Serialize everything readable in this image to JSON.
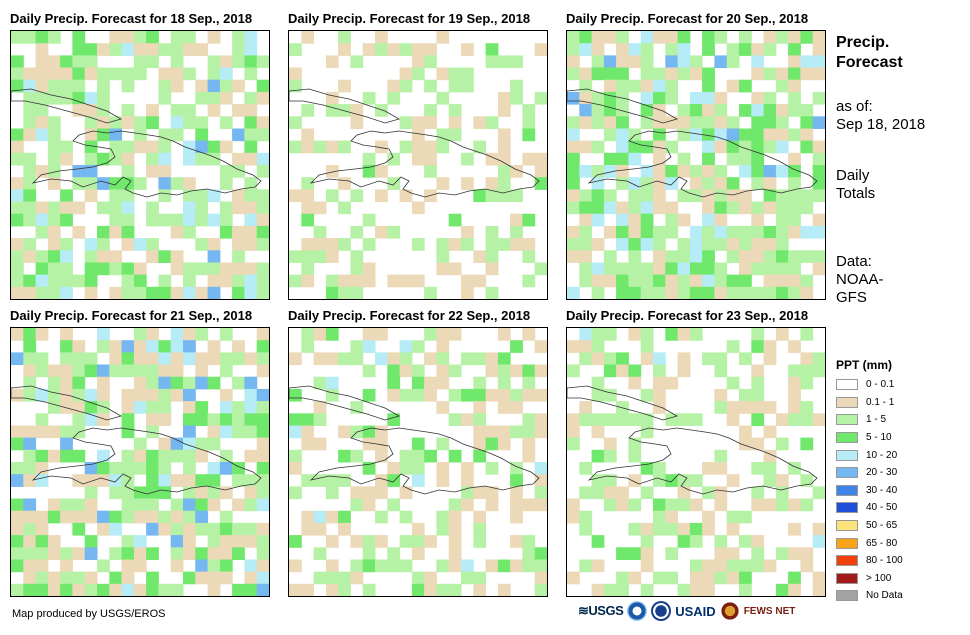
{
  "panels": [
    {
      "title": "Daily Precip. Forecast for 18 Sep., 2018"
    },
    {
      "title": "Daily Precip. Forecast for 19 Sep., 2018"
    },
    {
      "title": "Daily Precip. Forecast for 20 Sep., 2018"
    },
    {
      "title": "Daily Precip. Forecast for 21 Sep., 2018"
    },
    {
      "title": "Daily Precip. Forecast for 22 Sep., 2018"
    },
    {
      "title": "Daily Precip. Forecast for 23 Sep., 2018"
    }
  ],
  "side": {
    "title_line1": "Precip.",
    "title_line2": "Forecast",
    "asof_line1": "as of:",
    "asof_line2": "Sep 18, 2018",
    "period_line1": "Daily",
    "period_line2": "Totals",
    "data_line1": "Data:",
    "data_line2": "NOAA-",
    "data_line3": "GFS"
  },
  "legend": {
    "title": "PPT (mm)",
    "items": [
      {
        "label": "0 - 0.1",
        "color": "#ffffff"
      },
      {
        "label": "0.1 - 1",
        "color": "#ecd9b8"
      },
      {
        "label": "1 - 5",
        "color": "#b6f2a5"
      },
      {
        "label": "5 - 10",
        "color": "#6fe86b"
      },
      {
        "label": "10 - 20",
        "color": "#b5ecf5"
      },
      {
        "label": "20 - 30",
        "color": "#75b7f0"
      },
      {
        "label": "30 - 40",
        "color": "#3f85e8"
      },
      {
        "label": "40 - 50",
        "color": "#1f4fd8"
      },
      {
        "label": "50 - 65",
        "color": "#fbe27a"
      },
      {
        "label": "65 - 80",
        "color": "#f8a41a"
      },
      {
        "label": "80 - 100",
        "color": "#f2400d"
      },
      {
        "label": "> 100",
        "color": "#a31a1a"
      },
      {
        "label": "No Data",
        "color": "#a3a3a3"
      }
    ]
  },
  "credit": "Map produced by USGS/EROS",
  "logos": {
    "usgs": "≋USGS",
    "usaid": "USAID",
    "fews": "FEWS NET"
  }
}
